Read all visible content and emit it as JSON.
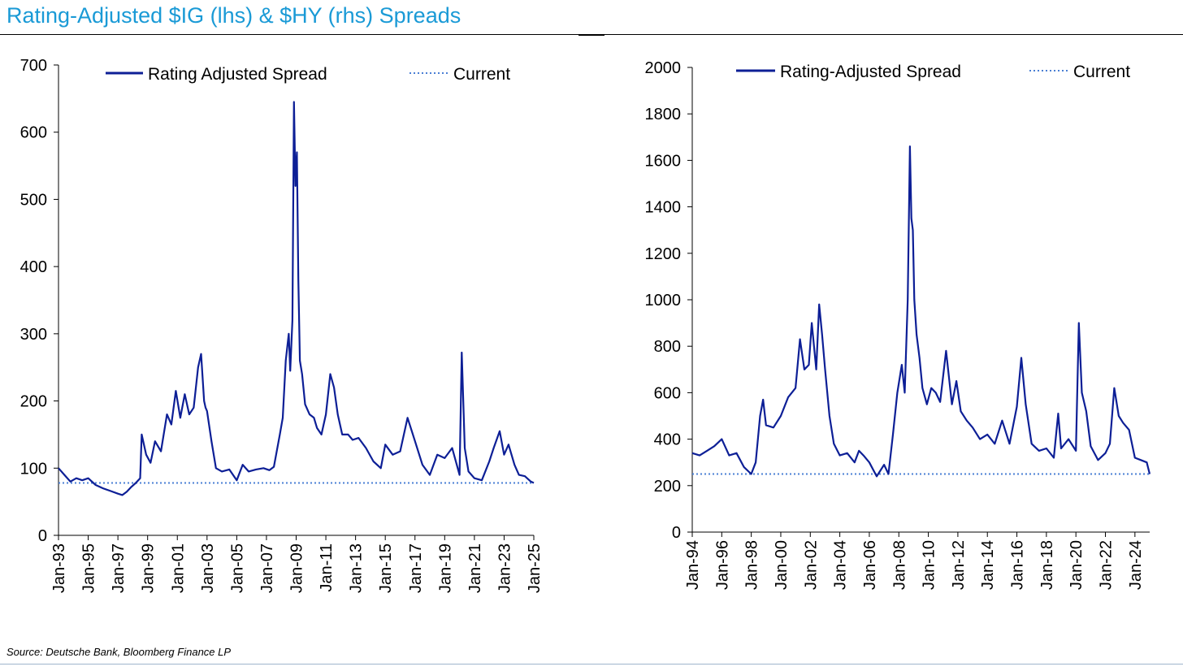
{
  "header": {
    "title": "Rating-Adjusted $IG (lhs) & $HY (rhs) Spreads"
  },
  "footer": {
    "source": "Source: Deutsche Bank, Bloomberg Finance LP"
  },
  "colors": {
    "title": "#1a9ad6",
    "series_line": "#0d1f96",
    "current_line": "#4a7fd4",
    "axis": "#000000"
  },
  "chart_data": [
    {
      "type": "line",
      "title": "",
      "xlabel": "",
      "ylabel": "",
      "ylim": [
        0,
        700
      ],
      "yticks": [
        0,
        100,
        200,
        300,
        400,
        500,
        600,
        700
      ],
      "xlim": [
        1993.0,
        2025.0
      ],
      "xtick_labels": [
        "Jan-93",
        "Jan-95",
        "Jan-97",
        "Jan-99",
        "Jan-01",
        "Jan-03",
        "Jan-05",
        "Jan-07",
        "Jan-09",
        "Jan-11",
        "Jan-13",
        "Jan-15",
        "Jan-17",
        "Jan-19",
        "Jan-21",
        "Jan-23",
        "Jan-25"
      ],
      "xtick_values": [
        1993,
        1995,
        1997,
        1999,
        2001,
        2003,
        2005,
        2007,
        2009,
        2011,
        2013,
        2015,
        2017,
        2019,
        2021,
        2023,
        2025
      ],
      "grid": false,
      "legend": {
        "placement": "top",
        "entries": [
          "Rating Adjusted Spread",
          "Current"
        ]
      },
      "series": [
        {
          "name": "Rating Adjusted Spread",
          "style": "solid",
          "x": [
            1993.0,
            1993.4,
            1993.8,
            1994.2,
            1994.6,
            1995.0,
            1995.5,
            1996.0,
            1996.5,
            1997.0,
            1997.3,
            1997.6,
            1997.9,
            1998.2,
            1998.5,
            1998.6,
            1998.9,
            1999.2,
            1999.5,
            1999.9,
            2000.3,
            2000.6,
            2000.9,
            2001.2,
            2001.5,
            2001.8,
            2002.1,
            2002.4,
            2002.6,
            2002.8,
            2002.9,
            2003.0,
            2003.3,
            2003.6,
            2004.0,
            2004.5,
            2005.0,
            2005.4,
            2005.8,
            2006.3,
            2006.8,
            2007.2,
            2007.5,
            2007.9,
            2008.1,
            2008.3,
            2008.5,
            2008.6,
            2008.75,
            2008.85,
            2008.95,
            2009.05,
            2009.15,
            2009.25,
            2009.4,
            2009.6,
            2009.9,
            2010.2,
            2010.4,
            2010.7,
            2011.0,
            2011.3,
            2011.55,
            2011.8,
            2012.1,
            2012.5,
            2012.8,
            2013.2,
            2013.7,
            2014.2,
            2014.7,
            2015.0,
            2015.5,
            2016.0,
            2016.5,
            2017.0,
            2017.5,
            2018.0,
            2018.5,
            2019.0,
            2019.5,
            2020.0,
            2020.15,
            2020.35,
            2020.6,
            2021.0,
            2021.5,
            2022.0,
            2022.3,
            2022.7,
            2023.0,
            2023.3,
            2023.7,
            2024.0,
            2024.4,
            2024.8,
            2025.0
          ],
          "y": [
            100,
            90,
            80,
            85,
            82,
            85,
            75,
            70,
            66,
            62,
            60,
            65,
            72,
            78,
            85,
            150,
            120,
            108,
            140,
            125,
            180,
            165,
            215,
            175,
            210,
            180,
            190,
            250,
            270,
            200,
            190,
            185,
            140,
            100,
            95,
            98,
            82,
            105,
            95,
            98,
            100,
            97,
            102,
            150,
            175,
            260,
            300,
            245,
            320,
            645,
            520,
            570,
            380,
            260,
            240,
            195,
            180,
            175,
            160,
            150,
            180,
            240,
            220,
            180,
            150,
            150,
            142,
            145,
            130,
            110,
            100,
            135,
            120,
            125,
            175,
            140,
            105,
            90,
            120,
            115,
            130,
            90,
            272,
            130,
            95,
            85,
            82,
            110,
            130,
            155,
            120,
            135,
            105,
            90,
            88,
            80,
            78
          ]
        }
      ],
      "current": {
        "name": "Current",
        "style": "dotted",
        "value": 78
      }
    },
    {
      "type": "line",
      "title": "",
      "xlabel": "",
      "ylabel": "",
      "ylim": [
        0,
        2000
      ],
      "yticks": [
        0,
        200,
        400,
        600,
        800,
        1000,
        1200,
        1400,
        1600,
        1800,
        2000
      ],
      "xlim": [
        1994.0,
        2025.0
      ],
      "xtick_labels": [
        "Jan-94",
        "Jan-96",
        "Jan-98",
        "Jan-00",
        "Jan-02",
        "Jan-04",
        "Jan-06",
        "Jan-08",
        "Jan-10",
        "Jan-12",
        "Jan-14",
        "Jan-16",
        "Jan-18",
        "Jan-20",
        "Jan-22",
        "Jan-24"
      ],
      "xtick_values": [
        1994,
        1996,
        1998,
        2000,
        2002,
        2004,
        2006,
        2008,
        2010,
        2012,
        2014,
        2016,
        2018,
        2020,
        2022,
        2024
      ],
      "grid": false,
      "legend": {
        "placement": "top",
        "entries": [
          "Rating-Adjusted Spread",
          "Current"
        ]
      },
      "series": [
        {
          "name": "Rating-Adjusted Spread",
          "style": "solid",
          "x": [
            1994.0,
            1994.5,
            1995.0,
            1995.5,
            1996.0,
            1996.5,
            1997.0,
            1997.5,
            1998.0,
            1998.3,
            1998.6,
            1998.8,
            1999.0,
            1999.5,
            2000.0,
            2000.5,
            2001.0,
            2001.3,
            2001.6,
            2001.9,
            2002.1,
            2002.4,
            2002.6,
            2002.8,
            2003.0,
            2003.3,
            2003.6,
            2004.0,
            2004.5,
            2005.0,
            2005.3,
            2005.6,
            2006.0,
            2006.5,
            2007.0,
            2007.3,
            2007.6,
            2007.9,
            2008.2,
            2008.4,
            2008.6,
            2008.75,
            2008.85,
            2008.95,
            2009.05,
            2009.2,
            2009.4,
            2009.6,
            2009.9,
            2010.2,
            2010.5,
            2010.8,
            2011.2,
            2011.6,
            2011.9,
            2012.2,
            2012.6,
            2013.0,
            2013.5,
            2014.0,
            2014.5,
            2015.0,
            2015.5,
            2016.0,
            2016.3,
            2016.6,
            2017.0,
            2017.5,
            2018.0,
            2018.5,
            2018.8,
            2019.0,
            2019.5,
            2020.0,
            2020.2,
            2020.4,
            2020.7,
            2021.0,
            2021.5,
            2022.0,
            2022.3,
            2022.6,
            2022.9,
            2023.2,
            2023.6,
            2024.0,
            2024.4,
            2024.8,
            2025.0
          ],
          "y": [
            340,
            330,
            350,
            370,
            400,
            330,
            340,
            280,
            250,
            300,
            500,
            570,
            460,
            450,
            500,
            580,
            620,
            830,
            700,
            720,
            900,
            700,
            980,
            850,
            700,
            500,
            380,
            330,
            340,
            300,
            350,
            330,
            300,
            240,
            290,
            250,
            420,
            600,
            720,
            600,
            1000,
            1660,
            1350,
            1300,
            1000,
            850,
            750,
            620,
            550,
            620,
            600,
            560,
            780,
            550,
            650,
            520,
            480,
            450,
            400,
            420,
            380,
            480,
            380,
            540,
            750,
            550,
            380,
            350,
            360,
            320,
            510,
            360,
            400,
            350,
            900,
            600,
            520,
            370,
            310,
            340,
            380,
            620,
            500,
            470,
            440,
            320,
            310,
            300,
            250
          ]
        }
      ],
      "current": {
        "name": "Current",
        "style": "dotted",
        "value": 250
      }
    }
  ]
}
